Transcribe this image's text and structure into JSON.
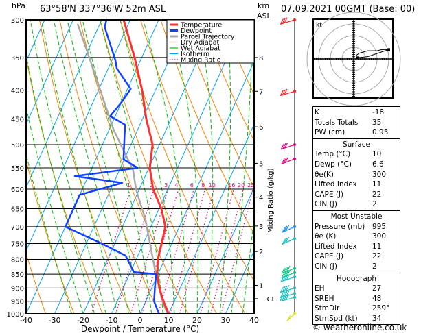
{
  "header": {
    "pressure_unit": "hPa",
    "location": "63°58'N 337°36'W 52m ASL",
    "km_label": "km",
    "asl_label": "ASL",
    "datetime": "07.09.2021 00GMT (Base: 00)"
  },
  "chart_data": {
    "type": "line",
    "subtype": "skew-T log-P",
    "xlabel": "Dewpoint / Temperature (°C)",
    "ylabel": "hPa",
    "right_label": "Mixing Ratio (g/kg)",
    "xlim": [
      -40,
      40
    ],
    "ylim": [
      1000,
      300
    ],
    "y_scale": "log",
    "x_ticks": [
      "-40",
      "-30",
      "-20",
      "-10",
      "0",
      "10",
      "20",
      "30",
      "40"
    ],
    "y_ticks": [
      "300",
      "350",
      "400",
      "450",
      "500",
      "550",
      "600",
      "650",
      "700",
      "750",
      "800",
      "850",
      "900",
      "950",
      "1000"
    ],
    "km_ticks": [
      {
        "label": "8",
        "p": 350
      },
      {
        "label": "7",
        "p": 402
      },
      {
        "label": "6",
        "p": 465
      },
      {
        "label": "5",
        "p": 540
      },
      {
        "label": "4",
        "p": 620
      },
      {
        "label": "3",
        "p": 698
      },
      {
        "label": "2",
        "p": 775
      },
      {
        "label": "1",
        "p": 890
      },
      {
        "label": "LCL",
        "p": 940
      }
    ],
    "mixing_ratio_labels": [
      "1",
      "2",
      "3",
      "4",
      "6",
      "8",
      "10",
      "16",
      "20",
      "25"
    ],
    "legend": {
      "placement": "top-right",
      "entries": [
        {
          "name": "Temperature",
          "color": "#ff3030"
        },
        {
          "name": "Dewpoint",
          "color": "#1040ff"
        },
        {
          "name": "Parcel Trajectory",
          "color": "#a8a8a8"
        },
        {
          "name": "Dry Adiabat",
          "color": "#ff8000"
        },
        {
          "name": "Wet Adiabat",
          "color": "#00c000"
        },
        {
          "name": "Isotherm",
          "color": "#00a0ff"
        },
        {
          "name": "Mixing Ratio",
          "color": "#e0007f"
        }
      ]
    },
    "series": [
      {
        "name": "Temperature",
        "color": "#ff3030",
        "p": [
          1000,
          950,
          900,
          850,
          800,
          750,
          700,
          650,
          600,
          550,
          500,
          450,
          400,
          350,
          300
        ],
        "T": [
          10,
          6.2,
          2.7,
          -0.3,
          -2.4,
          -3.6,
          -4.9,
          -9.2,
          -15.2,
          -19.7,
          -22.4,
          -28.7,
          -34.7,
          -42.5,
          -52.3
        ]
      },
      {
        "name": "Dewpoint",
        "color": "#1040ff",
        "p": [
          1000,
          950,
          900,
          850,
          843,
          788,
          753,
          700,
          614,
          585,
          569,
          550,
          531,
          461,
          445,
          419,
          398,
          366,
          354,
          309,
          300
        ],
        "T": [
          6.6,
          2.9,
          1.1,
          -0.7,
          -8.8,
          -14.3,
          -23.7,
          -40,
          -40,
          -27,
          -44.7,
          -24,
          -30.3,
          -35.2,
          -41.8,
          -39.9,
          -38.9,
          -47,
          -48.8,
          -57.8,
          -58.3
        ]
      },
      {
        "name": "Parcel Trajectory",
        "color": "#a8a8a8",
        "p": [
          1000,
          950,
          834,
          677,
          601,
          555,
          470,
          350,
          305
        ],
        "T": [
          9.6,
          5.8,
          -1.8,
          -13.3,
          -21.1,
          -25.2,
          -38.5,
          -58.4,
          -67.8
        ]
      }
    ],
    "wind_barbs": [
      {
        "p": 300,
        "dir": 250,
        "speed": 30,
        "color": "#ff2020"
      },
      {
        "p": 402,
        "dir": 250,
        "speed": 30,
        "color": "#ff2020"
      },
      {
        "p": 500,
        "dir": 245,
        "speed": 25,
        "color": "#e0007f"
      },
      {
        "p": 530,
        "dir": 240,
        "speed": 25,
        "color": "#e0007f"
      },
      {
        "p": 700,
        "dir": 235,
        "speed": 30,
        "color": "#1090ff"
      },
      {
        "p": 735,
        "dir": 235,
        "speed": 30,
        "color": "#10c0c0"
      },
      {
        "p": 830,
        "dir": 240,
        "speed": 35,
        "color": "#10c080"
      },
      {
        "p": 845,
        "dir": 240,
        "speed": 35,
        "color": "#10c080"
      },
      {
        "p": 860,
        "dir": 245,
        "speed": 35,
        "color": "#10c0c0"
      },
      {
        "p": 900,
        "dir": 250,
        "speed": 35,
        "color": "#10c0c0"
      },
      {
        "p": 920,
        "dir": 250,
        "speed": 40,
        "color": "#10c0c0"
      },
      {
        "p": 935,
        "dir": 255,
        "speed": 40,
        "color": "#10c0c0"
      },
      {
        "p": 1000,
        "dir": 210,
        "speed": 10,
        "color": "#e0e000"
      }
    ]
  },
  "hodograph": {
    "unit_label": "kt",
    "points_u_v": [
      [
        2,
        3
      ],
      [
        5,
        5
      ],
      [
        12,
        7
      ],
      [
        20,
        7
      ],
      [
        24,
        8
      ],
      [
        30,
        8
      ],
      [
        12,
        2
      ],
      [
        3,
        1
      ]
    ]
  },
  "indices": {
    "rows": [
      {
        "k": "K",
        "v": "-18"
      },
      {
        "k": "Totals Totals",
        "v": "35"
      },
      {
        "k": "PW (cm)",
        "v": "0.95"
      }
    ],
    "surface": {
      "title": "Surface",
      "rows": [
        {
          "k": "Temp (°C)",
          "v": "10"
        },
        {
          "k": "Dewp (°C)",
          "v": "6.6"
        },
        {
          "k": "θe(K)",
          "v": "300"
        },
        {
          "k": "Lifted Index",
          "v": "11"
        },
        {
          "k": "CAPE (J)",
          "v": "22"
        },
        {
          "k": "CIN (J)",
          "v": "2"
        }
      ]
    },
    "most_unstable": {
      "title": "Most Unstable",
      "rows": [
        {
          "k": "Pressure (mb)",
          "v": "995"
        },
        {
          "k": "θe (K)",
          "v": "300"
        },
        {
          "k": "Lifted Index",
          "v": "11"
        },
        {
          "k": "CAPE (J)",
          "v": "22"
        },
        {
          "k": "CIN (J)",
          "v": "2"
        }
      ]
    },
    "hodograph": {
      "title": "Hodograph",
      "rows": [
        {
          "k": "EH",
          "v": "27"
        },
        {
          "k": "SREH",
          "v": "48"
        },
        {
          "k": "StmDir",
          "v": "259°"
        },
        {
          "k": "StmSpd (kt)",
          "v": "34"
        }
      ]
    }
  },
  "footer": {
    "copyright": "© weatheronline.co.uk"
  }
}
